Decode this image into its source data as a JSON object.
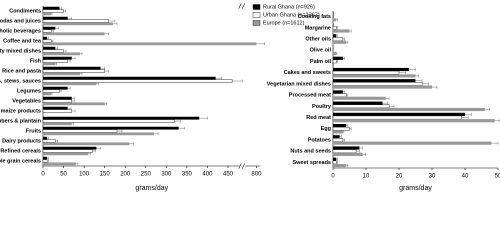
{
  "chart_data": [
    {
      "type": "hbar",
      "xlabel": "grams/day",
      "categories": [
        "Condiments",
        "Sodas and juices",
        "Alcoholic beverages",
        "Coffee and tea",
        "Meaty mixed dishes",
        "Fish",
        "Rice and pasta",
        "Vegetable soups, stews, sauces",
        "Legumes",
        "Vegetables",
        "Fermented maize products",
        "Roots, tubers & plantain",
        "Fruits",
        "Dairy products",
        "Refined cereals",
        "Whole grain cereals"
      ],
      "series": [
        {
          "name": "Rural Ghana (n=926)",
          "color": "#000000",
          "values": [
            40,
            60,
            30,
            10,
            30,
            70,
            140,
            420,
            60,
            70,
            60,
            380,
            330,
            10,
            130,
            10
          ],
          "errors": [
            5,
            10,
            8,
            3,
            5,
            8,
            10,
            15,
            6,
            6,
            8,
            20,
            15,
            3,
            10,
            3
          ]
        },
        {
          "name": "Urban Ghana (n=1367)",
          "color": "#ffffff",
          "values": [
            50,
            160,
            20,
            20,
            50,
            60,
            150,
            460,
            40,
            70,
            70,
            320,
            180,
            30,
            120,
            10
          ],
          "errors": [
            5,
            15,
            6,
            4,
            6,
            6,
            10,
            20,
            5,
            6,
            8,
            15,
            12,
            5,
            8,
            3
          ]
        },
        {
          "name": "Europe (n=1612)",
          "color": "#999999",
          "values": [
            20,
            170,
            150,
            800,
            90,
            30,
            90,
            130,
            20,
            150,
            0,
            70,
            270,
            210,
            110,
            80
          ],
          "errors": [
            2,
            10,
            10,
            20,
            5,
            3,
            5,
            5,
            2,
            5,
            0,
            4,
            10,
            10,
            5,
            5
          ]
        }
      ],
      "xlim": [
        0,
        810
      ],
      "xbreak": [
        470,
        780
      ],
      "xticks": [
        0,
        50,
        100,
        150,
        200,
        250,
        300,
        350,
        400,
        450,
        800
      ]
    },
    {
      "type": "hbar",
      "xlabel": "grams/day",
      "categories": [
        "Cooking fats",
        "Margarine",
        "Other oils",
        "Olive oil",
        "Palm oil",
        "Cakes and sweets",
        "Vegetarian mixed dishes",
        "Processed meat",
        "Poultry",
        "Red meat",
        "Egg",
        "Potatoes",
        "Nuts and seeds",
        "Sweet spreads"
      ],
      "series": [
        {
          "color": "#000000",
          "values": [
            0,
            0,
            1,
            0,
            3,
            23,
            25,
            3,
            15,
            40,
            4,
            2,
            8,
            1
          ],
          "errors": [
            0.2,
            0.2,
            0.3,
            0.1,
            0.5,
            2,
            2,
            0.5,
            1.5,
            2,
            0.5,
            0.5,
            1,
            0.3
          ]
        },
        {
          "color": "#ffffff",
          "values": [
            0,
            1,
            3,
            0,
            1,
            20,
            27,
            4,
            17,
            39,
            5,
            3,
            7,
            1
          ],
          "errors": [
            0.2,
            0.3,
            0.5,
            0.1,
            0.3,
            2,
            2,
            0.5,
            1.5,
            2,
            0.5,
            0.5,
            1,
            0.3
          ]
        },
        {
          "color": "#999999",
          "values": [
            1,
            5,
            4,
            1,
            0,
            25,
            30,
            16,
            46,
            49,
            3,
            48,
            9,
            4
          ],
          "errors": [
            0.3,
            0.5,
            0.5,
            0.2,
            0.1,
            1,
            1.5,
            1,
            1.5,
            1.5,
            0.3,
            2,
            0.8,
            0.4
          ]
        }
      ],
      "xlim": [
        0,
        50
      ],
      "xticks": [
        0,
        10,
        20,
        30,
        40,
        50
      ]
    }
  ]
}
